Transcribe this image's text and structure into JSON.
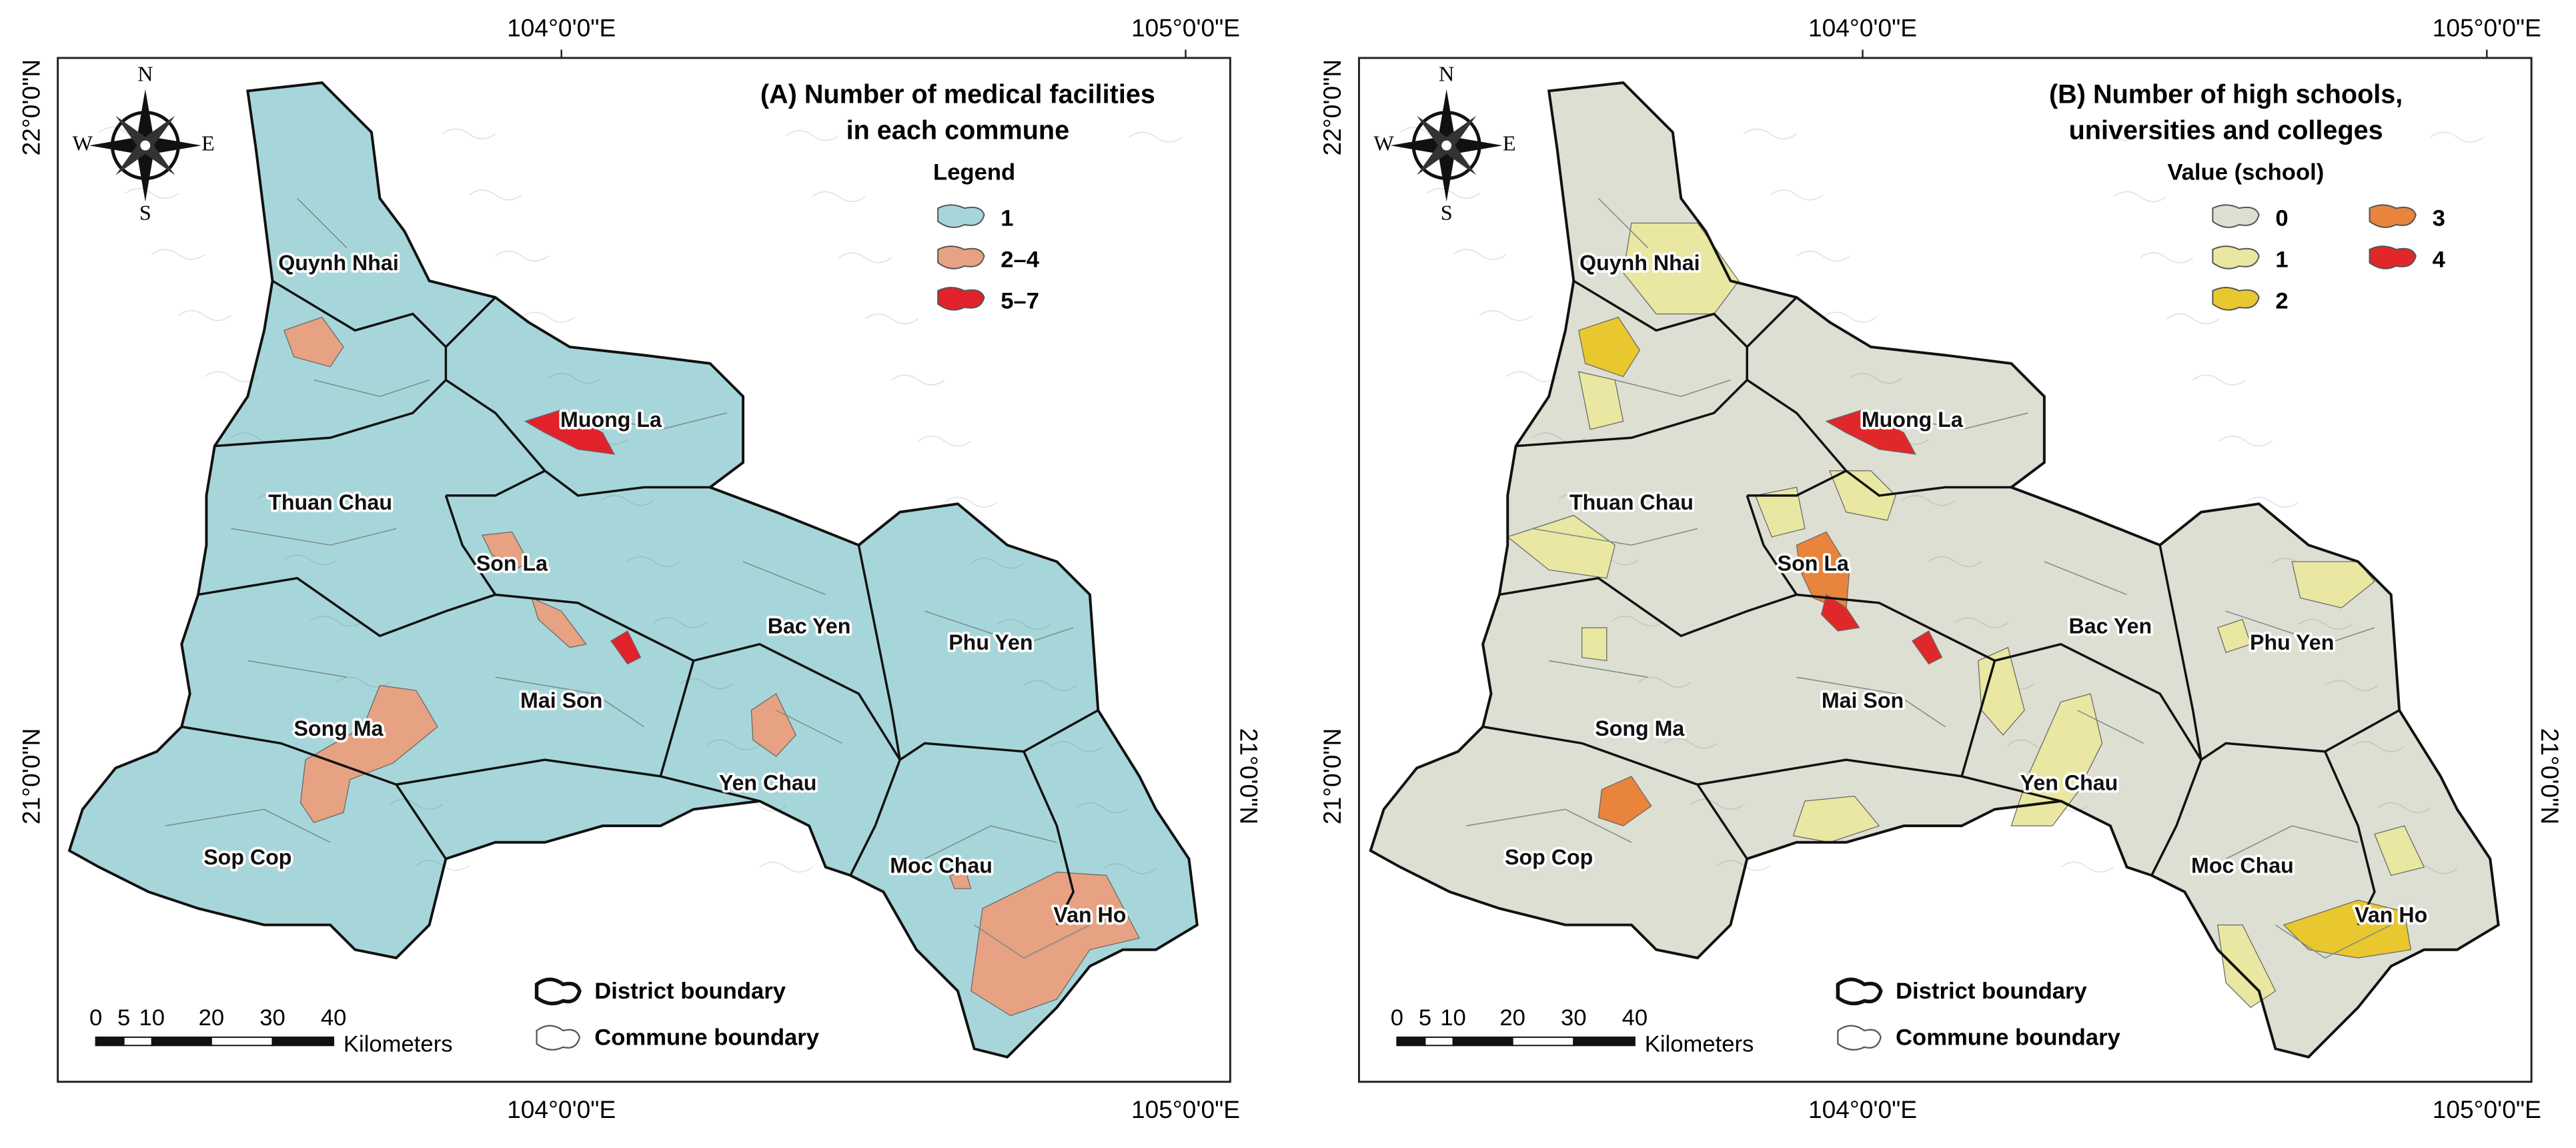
{
  "panels": [
    {
      "title": [
        "(A) Number of medical facilities",
        "in each commune"
      ],
      "legend": {
        "title": "Legend",
        "items": [
          {
            "label": "1",
            "color": "#a7d6da"
          },
          {
            "label": "2–4",
            "color": "#e6a282"
          },
          {
            "label": "5–7",
            "color": "#e1222b"
          }
        ]
      },
      "districts": [
        "Quynh Nhai",
        "Muong La",
        "Thuan Chau",
        "Son La",
        "Bac Yen",
        "Phu Yen",
        "Mai Son",
        "Song Ma",
        "Yen Chau",
        "Sop Cop",
        "Moc Chau",
        "Van Ho"
      ],
      "longitudes": [
        "104°0'0\"E",
        "105°0'0\"E"
      ],
      "latitudes": [
        "22°0'0\"N",
        "21°0'0\"N"
      ],
      "compass": [
        "N",
        "S",
        "E",
        "W"
      ],
      "scale": {
        "ticks": [
          "0",
          "5",
          "10",
          "20",
          "30",
          "40"
        ],
        "unit": "Kilometers"
      },
      "boundaries": [
        "District boundary",
        "Commune boundary"
      ]
    },
    {
      "title": [
        "(B) Number of high schools,",
        "universities and colleges"
      ],
      "legend": {
        "title": "Value (school)",
        "items": [
          {
            "label": "0",
            "color": "#dcdfd2"
          },
          {
            "label": "1",
            "color": "#e9e7a2"
          },
          {
            "label": "2",
            "color": "#e9c72e"
          },
          {
            "label": "3",
            "color": "#e8843c"
          },
          {
            "label": "4",
            "color": "#e0282a"
          }
        ]
      },
      "districts": [
        "Quynh Nhai",
        "Muong La",
        "Thuan Chau",
        "Son La",
        "Bac Yen",
        "Phu Yen",
        "Mai Son",
        "Song Ma",
        "Yen Chau",
        "Sop Cop",
        "Moc Chau",
        "Van Ho"
      ],
      "longitudes": [
        "104°0'0\"E",
        "105°0'0\"E"
      ],
      "latitudes": [
        "22°0'0\"N",
        "21°0'0\"N"
      ],
      "compass": [
        "N",
        "S",
        "E",
        "W"
      ],
      "scale": {
        "ticks": [
          "0",
          "5",
          "10",
          "20",
          "30",
          "40"
        ],
        "unit": "Kilometers"
      },
      "boundaries": [
        "District boundary",
        "Commune boundary"
      ]
    }
  ]
}
